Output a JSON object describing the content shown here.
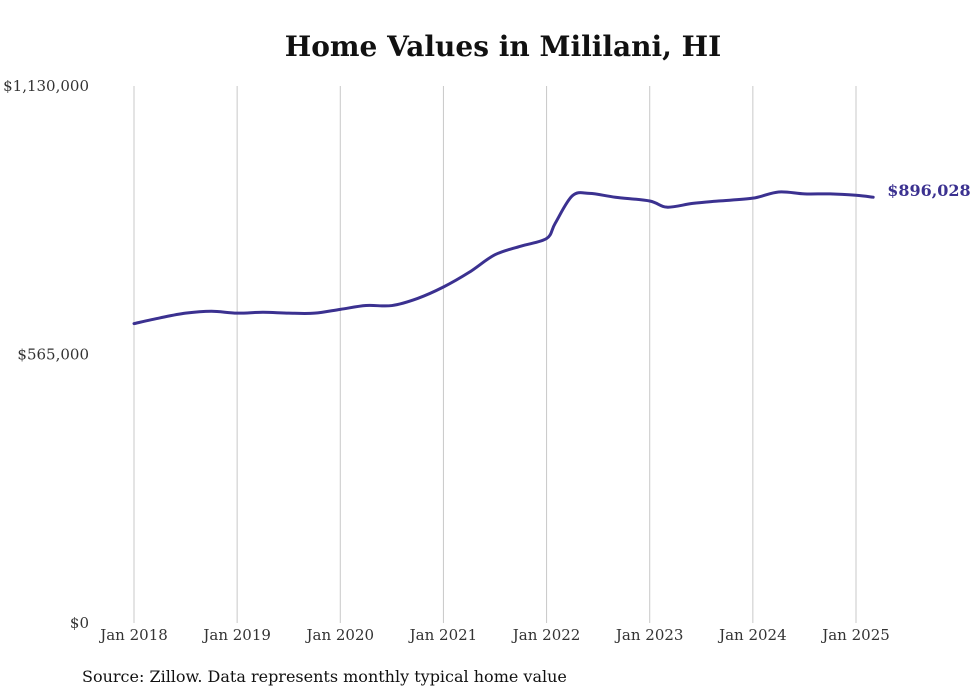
{
  "chart_data": {
    "type": "line",
    "title": "Home Values in Mililani, HI",
    "source": "Source: Zillow. Data represents monthly typical home value",
    "line_color": "#3b3190",
    "grid_color": "#c8c8c8",
    "grid": "vertical",
    "x_tick_labels": [
      "Jan 2018",
      "Jan 2019",
      "Jan 2020",
      "Jan 2021",
      "Jan 2022",
      "Jan 2023",
      "Jan 2024",
      "Jan 2025"
    ],
    "x_tick_dates": [
      "2018-01",
      "2019-01",
      "2020-01",
      "2021-01",
      "2022-01",
      "2023-01",
      "2024-01",
      "2025-01"
    ],
    "y_tick_labels": [
      "$0",
      "$565,000",
      "$1,130,000"
    ],
    "y_tick_values": [
      0,
      565000,
      1130000
    ],
    "ylim": [
      0,
      1130000
    ],
    "end_label": "$896,028",
    "series": [
      {
        "x": [
          "2018-01",
          "2018-04",
          "2018-07",
          "2018-10",
          "2019-01",
          "2019-04",
          "2019-07",
          "2019-10",
          "2020-01",
          "2020-04",
          "2020-07",
          "2020-10",
          "2021-01",
          "2021-04",
          "2021-07",
          "2021-10",
          "2022-01",
          "2022-02",
          "2022-04",
          "2022-06",
          "2022-09",
          "2023-01",
          "2023-03",
          "2023-06",
          "2023-09",
          "2024-01",
          "2024-04",
          "2024-07",
          "2024-10",
          "2025-01",
          "2025-03"
        ],
        "y": [
          630000,
          642000,
          652000,
          656000,
          652000,
          654000,
          652000,
          652000,
          660000,
          668000,
          668000,
          683000,
          707000,
          738000,
          775000,
          793000,
          809000,
          841000,
          899000,
          904000,
          896000,
          888000,
          875000,
          883000,
          888000,
          894000,
          907000,
          903000,
          903000,
          900000,
          896028
        ]
      }
    ]
  }
}
